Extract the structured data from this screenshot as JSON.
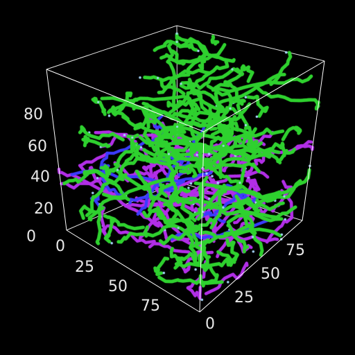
{
  "volume": {
    "background": "#000000",
    "box_color": "#ffffff",
    "fiber_colors": {
      "primary": "#2fd12f",
      "secondary": "#b22ee8",
      "tertiary": "#3b3bff",
      "highlight": "#a8d8ff"
    }
  },
  "axes": {
    "vertical": {
      "ticks": [
        "0",
        "20",
        "40",
        "60",
        "80"
      ]
    },
    "left_depth": {
      "ticks": [
        "0",
        "25",
        "50",
        "75"
      ]
    },
    "right_depth": {
      "ticks": [
        "0",
        "25",
        "50",
        "75"
      ]
    }
  }
}
